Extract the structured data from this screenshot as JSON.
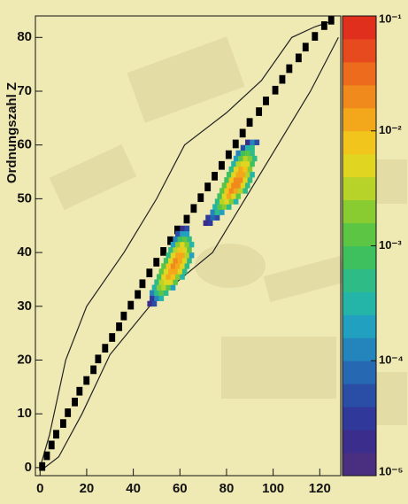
{
  "chart_data": {
    "type": "heatmap",
    "y_label": "Ordnungszahl Z",
    "xlim": [
      -2,
      129
    ],
    "ylim": [
      -1.5,
      84
    ],
    "xticks": [
      0,
      20,
      40,
      60,
      80,
      100,
      120
    ],
    "yticks": [
      0,
      10,
      20,
      30,
      40,
      50,
      60,
      70,
      80
    ],
    "colorbar": {
      "log": true,
      "clim": [
        1e-05,
        0.1
      ],
      "ticks": [
        {
          "value": 0.1,
          "label": "10⁻¹"
        },
        {
          "value": 0.01,
          "label": "10⁻²"
        },
        {
          "value": 0.001,
          "label": "10⁻³"
        },
        {
          "value": 0.0001,
          "label": "10⁻⁴"
        },
        {
          "value": 1e-05,
          "label": "10⁻⁵"
        }
      ],
      "colormap": [
        "#4a2f80",
        "#3b2d8c",
        "#30389a",
        "#2a4ea6",
        "#2668b2",
        "#2484bc",
        "#22a0bf",
        "#25b4a8",
        "#2fbb86",
        "#3fc05e",
        "#5cc644",
        "#88cc32",
        "#b7d228",
        "#e0d520",
        "#f2c51c",
        "#f3a81b",
        "#f08a1c",
        "#ec6b1d",
        "#e74a1e",
        "#e0301d"
      ]
    },
    "rows": [
      {
        "z": 30,
        "n0": 46,
        "values": [
          2e-05,
          5e-05
        ]
      },
      {
        "z": 31,
        "n0": 47,
        "values": [
          3e-05,
          0.0001,
          0.0003
        ]
      },
      {
        "z": 32,
        "n0": 47,
        "values": [
          0.0001,
          0.0006,
          0.001,
          0.0004
        ]
      },
      {
        "z": 33,
        "n0": 48,
        "values": [
          0.0003,
          0.002,
          0.003,
          0.001,
          0.0002
        ]
      },
      {
        "z": 34,
        "n0": 49,
        "values": [
          0.0005,
          0.003,
          0.006,
          0.004,
          0.001
        ]
      },
      {
        "z": 35,
        "n0": 50,
        "values": [
          0.0008,
          0.005,
          0.01,
          0.008,
          0.002,
          0.0003
        ]
      },
      {
        "z": 36,
        "n0": 51,
        "values": [
          0.001,
          0.006,
          0.015,
          0.012,
          0.004,
          0.0005
        ]
      },
      {
        "z": 37,
        "n0": 52,
        "values": [
          0.001,
          0.008,
          0.02,
          0.015,
          0.005,
          0.0006
        ]
      },
      {
        "z": 38,
        "n0": 53,
        "values": [
          0.0008,
          0.006,
          0.018,
          0.014,
          0.004,
          0.0004
        ]
      },
      {
        "z": 39,
        "n0": 54,
        "values": [
          0.0006,
          0.005,
          0.012,
          0.01,
          0.003,
          0.0002
        ]
      },
      {
        "z": 40,
        "n0": 55,
        "values": [
          0.0004,
          0.003,
          0.008,
          0.005,
          0.001
        ]
      },
      {
        "z": 41,
        "n0": 56,
        "values": [
          0.0002,
          0.002,
          0.004,
          0.002,
          0.0003
        ]
      },
      {
        "z": 42,
        "n0": 57,
        "values": [
          0.0001,
          0.0008,
          0.001,
          0.0005
        ]
      },
      {
        "z": 43,
        "n0": 58,
        "values": [
          5e-05,
          0.0002,
          0.0002
        ]
      },
      {
        "z": 44,
        "n0": 60,
        "values": [
          2e-05,
          5e-05
        ]
      },
      {
        "z": 45,
        "n0": 70,
        "values": [
          2e-05,
          3e-05
        ]
      },
      {
        "z": 46,
        "n0": 71,
        "values": [
          3e-05,
          8e-05,
          4e-05
        ]
      },
      {
        "z": 47,
        "n0": 73,
        "values": [
          0.0001,
          0.0004,
          0.0002
        ]
      },
      {
        "z": 48,
        "n0": 74,
        "values": [
          0.0003,
          0.001,
          0.002,
          0.0006
        ]
      },
      {
        "z": 49,
        "n0": 75,
        "values": [
          0.0005,
          0.003,
          0.005,
          0.002,
          0.0003
        ]
      },
      {
        "z": 50,
        "n0": 76,
        "values": [
          0.0008,
          0.005,
          0.01,
          0.006,
          0.001
        ]
      },
      {
        "z": 51,
        "n0": 77,
        "values": [
          0.001,
          0.007,
          0.018,
          0.012,
          0.003,
          0.0004
        ]
      },
      {
        "z": 52,
        "n0": 78,
        "values": [
          0.001,
          0.008,
          0.025,
          0.018,
          0.005,
          0.0005
        ]
      },
      {
        "z": 53,
        "n0": 79,
        "values": [
          0.0009,
          0.007,
          0.022,
          0.016,
          0.004,
          0.0004
        ]
      },
      {
        "z": 54,
        "n0": 80,
        "values": [
          0.0007,
          0.006,
          0.015,
          0.012,
          0.003,
          0.0003
        ]
      },
      {
        "z": 55,
        "n0": 81,
        "values": [
          0.0005,
          0.004,
          0.01,
          0.007,
          0.002
        ]
      },
      {
        "z": 56,
        "n0": 82,
        "values": [
          0.0003,
          0.003,
          0.006,
          0.004,
          0.0008
        ]
      },
      {
        "z": 57,
        "n0": 83,
        "values": [
          0.0002,
          0.0015,
          0.003,
          0.002,
          0.0004
        ]
      },
      {
        "z": 58,
        "n0": 84,
        "values": [
          0.0001,
          0.0007,
          0.0015,
          0.0006
        ]
      },
      {
        "z": 59,
        "n0": 86,
        "values": [
          5e-05,
          0.0003,
          0.0004
        ]
      },
      {
        "z": 60,
        "n0": 88,
        "values": [
          2e-05,
          0.0001,
          5e-05
        ]
      }
    ],
    "known": {
      "color": "#000000",
      "x": [
        0,
        2,
        4,
        6,
        9,
        11,
        14,
        16,
        19,
        22,
        24,
        27,
        30,
        33,
        35,
        38,
        41,
        43,
        46,
        49,
        52,
        55,
        58,
        62,
        65,
        68,
        71,
        74,
        77,
        80,
        83,
        86,
        89,
        93,
        96,
        100,
        103,
        106,
        110,
        113,
        117,
        121,
        124
      ],
      "y": [
        0,
        2,
        4,
        6,
        8,
        10,
        12,
        14,
        16,
        18,
        20,
        22,
        24,
        26,
        28,
        30,
        32,
        34,
        36,
        38,
        40,
        42,
        44,
        46,
        48,
        50,
        52,
        54,
        56,
        58,
        60,
        62,
        64,
        66,
        68,
        70,
        72,
        74,
        76,
        78,
        80,
        82,
        83
      ]
    },
    "contours": [
      {
        "x": [
          0,
          4,
          11,
          20,
          36,
          50,
          62,
          80,
          95,
          108,
          118,
          125
        ],
        "y": [
          0,
          6,
          20,
          30,
          40,
          50,
          60,
          66,
          72,
          80,
          82,
          83
        ]
      },
      {
        "x": [
          2,
          8,
          18,
          30,
          47,
          60,
          74,
          88,
          102,
          116,
          128
        ],
        "y": [
          0,
          2,
          10,
          21,
          30,
          35,
          40,
          50,
          60,
          70,
          80
        ]
      }
    ]
  }
}
